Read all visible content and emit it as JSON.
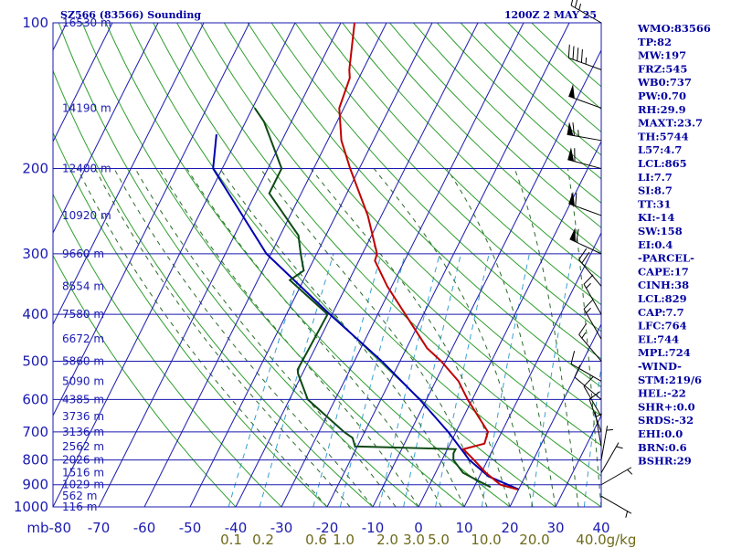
{
  "header": {
    "station": "SZ566 (83566) Sounding",
    "time": "1200Z  2 MAY 25"
  },
  "colors": {
    "grid": "#1a1ab0",
    "dry_adiabat": "#2f9e2f",
    "moist_adiabat": "#2a6a2a",
    "mixing_ratio": "#3aa0d0",
    "temperature": "#c00000",
    "dewpoint": "#0e4a14",
    "parcel": "#0000b0",
    "wind": "#000000"
  },
  "indices": [
    "WMO:83566",
    "TP:82",
    "MW:197",
    "FRZ:545",
    "WB0:737",
    "PW:0.70",
    "RH:29.9",
    "MAXT:23.7",
    "TH:5744",
    "L57:4.7",
    "LCL:865",
    "LI:7.7",
    "SI:8.7",
    "TT:31",
    "KI:-14",
    "SW:158",
    "EI:0.4",
    "-PARCEL-",
    "CAPE:17",
    "CINH:38",
    "LCL:829",
    "CAP:7.7",
    "LFC:764",
    "EL:744",
    "MPL:724",
    "-WIND-",
    "STM:219/6",
    "HEL:-22",
    "SHR+:0.0",
    "SRDS:-32",
    "EHI:0.0",
    "BRN:0.6",
    "BSHR:29"
  ],
  "chart_data": {
    "type": "skew-t",
    "p_unit": "mb",
    "ylim": [
      1000,
      100
    ],
    "xlim": [
      -80,
      40
    ],
    "pressure_ticks": [
      100,
      200,
      300,
      400,
      500,
      600,
      700,
      800,
      900,
      1000
    ],
    "pressure_labels": [
      "100",
      "200",
      "300",
      "400",
      "500",
      "600",
      "700",
      "800",
      "900",
      "1000"
    ],
    "temperature_ticks": [
      -80,
      -70,
      -60,
      -50,
      -40,
      -30,
      -20,
      -10,
      0,
      10,
      20,
      30,
      40
    ],
    "temperature_labels": [
      "mb-80",
      "-70",
      "-60",
      "-50",
      "-40",
      "-30",
      "-20",
      "-10",
      "0",
      "10",
      "20",
      "30",
      "40"
    ],
    "height_labels": [
      {
        "p": 100,
        "text": "16530 m"
      },
      {
        "p": 150,
        "text": "14190 m"
      },
      {
        "p": 200,
        "text": "12400 m"
      },
      {
        "p": 250,
        "text": "10920 m"
      },
      {
        "p": 300,
        "text": "9660 m"
      },
      {
        "p": 350,
        "text": "8554 m"
      },
      {
        "p": 400,
        "text": "7580 m"
      },
      {
        "p": 450,
        "text": "6672 m"
      },
      {
        "p": 500,
        "text": "5860 m"
      },
      {
        "p": 550,
        "text": "5090 m"
      },
      {
        "p": 600,
        "text": "4385 m"
      },
      {
        "p": 650,
        "text": "3736 m"
      },
      {
        "p": 700,
        "text": "3136 m"
      },
      {
        "p": 750,
        "text": "2562 m"
      },
      {
        "p": 800,
        "text": "2026 m"
      },
      {
        "p": 850,
        "text": "1516 m"
      },
      {
        "p": 900,
        "text": "1029 m"
      },
      {
        "p": 950,
        "text": "562 m"
      },
      {
        "p": 1000,
        "text": "116 m"
      }
    ],
    "mixing_ratio_values": [
      0.1,
      0.2,
      0.6,
      1.0,
      2.0,
      3.0,
      5.0,
      10.0,
      20.0,
      40.0
    ],
    "mixing_ratio_labels": [
      "0.1",
      "0.2",
      "0.6",
      "1.0",
      "2.0",
      "3.0",
      "5.0",
      "10.0",
      "20.0",
      "40.0",
      "g/kg"
    ],
    "temperature_profile": [
      {
        "p": 920,
        "t": 19.7
      },
      {
        "p": 900,
        "t": 15.5
      },
      {
        "p": 850,
        "t": 11.0
      },
      {
        "p": 800,
        "t": 7.0
      },
      {
        "p": 760,
        "t": 3.5
      },
      {
        "p": 740,
        "t": 7.5
      },
      {
        "p": 700,
        "t": 7.0
      },
      {
        "p": 600,
        "t": -1.0
      },
      {
        "p": 550,
        "t": -5.0
      },
      {
        "p": 500,
        "t": -11.0
      },
      {
        "p": 470,
        "t": -15.5
      },
      {
        "p": 400,
        "t": -24.0
      },
      {
        "p": 350,
        "t": -31.0
      },
      {
        "p": 310,
        "t": -36.5
      },
      {
        "p": 300,
        "t": -36.8
      },
      {
        "p": 250,
        "t": -43.0
      },
      {
        "p": 200,
        "t": -52.0
      },
      {
        "p": 175,
        "t": -57.0
      },
      {
        "p": 150,
        "t": -61.0
      },
      {
        "p": 130,
        "t": -62.0
      },
      {
        "p": 125,
        "t": -63.0
      },
      {
        "p": 100,
        "t": -67.0
      }
    ],
    "dewpoint_profile": [
      {
        "p": 910,
        "t": 13.6
      },
      {
        "p": 880,
        "t": 9.8
      },
      {
        "p": 850,
        "t": 6.0
      },
      {
        "p": 800,
        "t": 2.5
      },
      {
        "p": 775,
        "t": 1.8
      },
      {
        "p": 760,
        "t": 1.8
      },
      {
        "p": 750,
        "t": -20.5
      },
      {
        "p": 720,
        "t": -22.0
      },
      {
        "p": 700,
        "t": -24.5
      },
      {
        "p": 600,
        "t": -36.0
      },
      {
        "p": 530,
        "t": -41.0
      },
      {
        "p": 520,
        "t": -41.5
      },
      {
        "p": 400,
        "t": -41.0
      },
      {
        "p": 340,
        "t": -53.0
      },
      {
        "p": 325,
        "t": -51.0
      },
      {
        "p": 300,
        "t": -53.5
      },
      {
        "p": 275,
        "t": -56.0
      },
      {
        "p": 225,
        "t": -67.0
      },
      {
        "p": 200,
        "t": -67.0
      },
      {
        "p": 160,
        "t": -76.0
      },
      {
        "p": 150,
        "t": -79.5
      }
    ],
    "parcel_profile": [
      {
        "p": 920,
        "t": 20.0
      },
      {
        "p": 865,
        "t": 12.0
      },
      {
        "p": 800,
        "t": 6.0
      },
      {
        "p": 700,
        "t": -1.7
      },
      {
        "p": 600,
        "t": -11.5
      },
      {
        "p": 500,
        "t": -24.0
      },
      {
        "p": 400,
        "t": -40.5
      },
      {
        "p": 300,
        "t": -61.0
      },
      {
        "p": 200,
        "t": -82.0
      },
      {
        "p": 170,
        "t": -85.0
      }
    ],
    "wind_barbs": [
      {
        "p": 100,
        "dir": 300,
        "spd": 25
      },
      {
        "p": 125,
        "dir": 290,
        "spd": 45
      },
      {
        "p": 150,
        "dir": 290,
        "spd": 50
      },
      {
        "p": 175,
        "dir": 280,
        "spd": 65
      },
      {
        "p": 200,
        "dir": 285,
        "spd": 60
      },
      {
        "p": 250,
        "dir": 290,
        "spd": 60
      },
      {
        "p": 300,
        "dir": 295,
        "spd": 60
      },
      {
        "p": 350,
        "dir": 320,
        "spd": 20
      },
      {
        "p": 400,
        "dir": 330,
        "spd": 15
      },
      {
        "p": 450,
        "dir": 330,
        "spd": 15
      },
      {
        "p": 500,
        "dir": 320,
        "spd": 15
      },
      {
        "p": 550,
        "dir": 300,
        "spd": 10
      },
      {
        "p": 600,
        "dir": 310,
        "spd": 10
      },
      {
        "p": 650,
        "dir": 330,
        "spd": 10
      },
      {
        "p": 700,
        "dir": 340,
        "spd": 10
      },
      {
        "p": 750,
        "dir": 350,
        "spd": 5
      },
      {
        "p": 800,
        "dir": 10,
        "spd": 5
      },
      {
        "p": 850,
        "dir": 30,
        "spd": 5
      },
      {
        "p": 900,
        "dir": 60,
        "spd": 5
      },
      {
        "p": 950,
        "dir": 120,
        "spd": 5
      }
    ]
  }
}
